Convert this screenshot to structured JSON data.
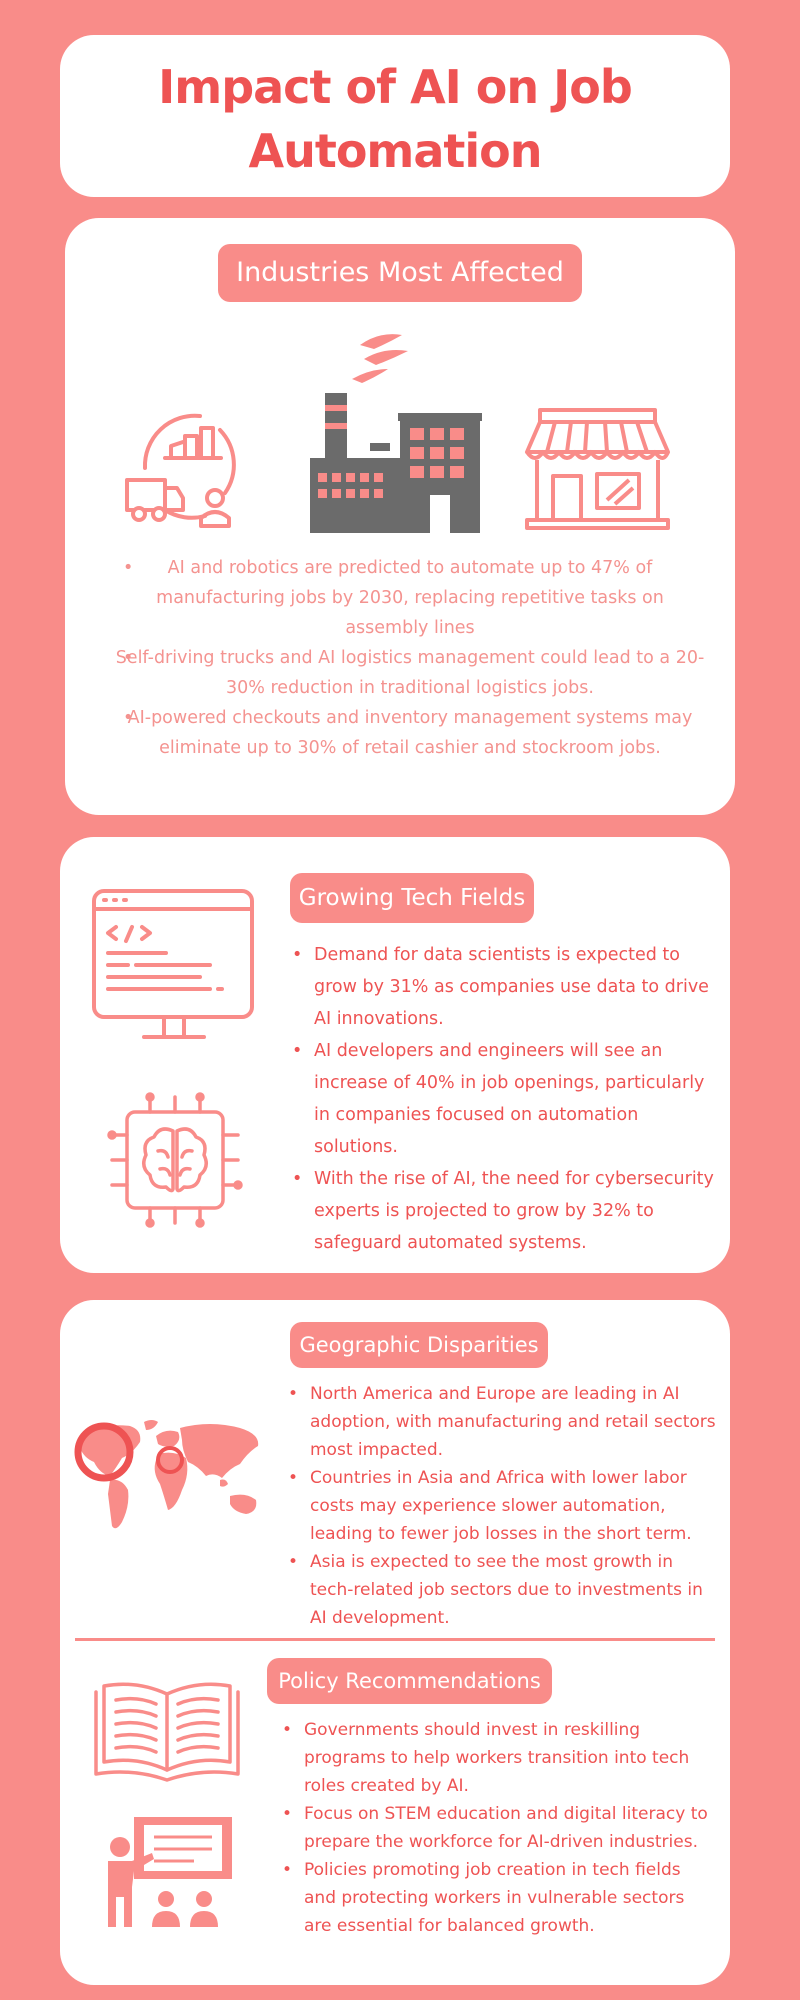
{
  "title": "Impact of AI on Job Automation",
  "industries": {
    "heading": "Industries Most Affected",
    "icons": [
      "logistics-icon",
      "factory-icon",
      "retail-store-icon"
    ],
    "bullets": [
      "AI and robotics are predicted to automate up to 47% of manufacturing jobs by 2030, replacing repetitive tasks on assembly lines",
      "Self-driving trucks and AI logistics management could lead to a 20-30% reduction in traditional logistics jobs.",
      "AI-powered checkouts and inventory management systems may eliminate up to 30% of retail cashier and stockroom jobs."
    ]
  },
  "tech": {
    "heading": "Growing Tech Fields",
    "icons": [
      "code-monitor-icon",
      "ai-chip-brain-icon"
    ],
    "bullets": [
      "Demand for data scientists is expected to grow by 31% as companies use data to drive AI innovations.",
      "AI developers and engineers will see an increase of 40% in job openings, particularly in companies focused on automation solutions.",
      "With the rise of AI, the need for cybersecurity experts is projected to grow by 32% to safeguard automated systems."
    ]
  },
  "geo": {
    "heading": "Geographic Disparities",
    "icons": [
      "world-map-icon"
    ],
    "bullets": [
      "North America and Europe are leading in AI adoption, with manufacturing and retail sectors most impacted.",
      "Countries in Asia and Africa with lower labor costs may experience slower automation, leading to fewer job losses in the short term.",
      "Asia is expected to see the most growth in tech-related job sectors due to investments in AI development."
    ]
  },
  "policy": {
    "heading": "Policy Recommendations",
    "icons": [
      "open-book-icon",
      "teacher-presentation-icon"
    ],
    "bullets": [
      "Governments should invest in reskilling programs to help workers transition into tech roles created by AI.",
      "Focus on STEM education and digital literacy to prepare the workforce for AI-driven industries.",
      "Policies promoting job creation in tech fields and protecting workers in vulnerable sectors are essential for balanced growth."
    ]
  },
  "colors": {
    "background": "#f98c89",
    "accent": "#ee5353",
    "icon_gray": "#6b6b6b",
    "card": "#ffffff"
  }
}
